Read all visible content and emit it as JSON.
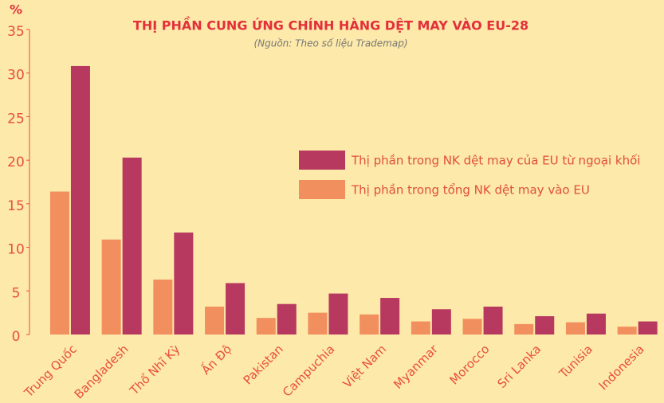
{
  "chart_data": {
    "type": "bar",
    "title": "THỊ PHẦN CUNG ỨNG CHÍNH HÀNG DỆT MAY VÀO EU-28",
    "subtitle": "(Nguồn: Theo số liệu Trademap)",
    "y_label": "%",
    "categories": [
      "Trung Quốc",
      "Bangladesh",
      "Thổ Nhĩ Kỳ",
      "Ấn Độ",
      "Pakistan",
      "Campuchia",
      "Việt Nam",
      "Myanmar",
      "Morocco",
      "Sri Lanka",
      "Tunisia",
      "Indonesia"
    ],
    "series": [
      {
        "name": "Thị phần trong NK dệt may của EU từ ngoại khối",
        "color": "#b8395f",
        "values": [
          30.8,
          20.3,
          11.7,
          5.9,
          3.5,
          4.7,
          4.2,
          2.9,
          3.2,
          2.1,
          2.4,
          1.5
        ]
      },
      {
        "name": "Thị phần trong tổng NK dệt may vào EU",
        "color": "#f28f5e",
        "values": [
          16.4,
          10.9,
          6.3,
          3.2,
          1.9,
          2.5,
          2.3,
          1.5,
          1.8,
          1.2,
          1.4,
          0.9
        ]
      }
    ],
    "ylim": [
      0,
      35
    ],
    "yticks": [
      0,
      5,
      10,
      15,
      20,
      25,
      30,
      35
    ]
  }
}
